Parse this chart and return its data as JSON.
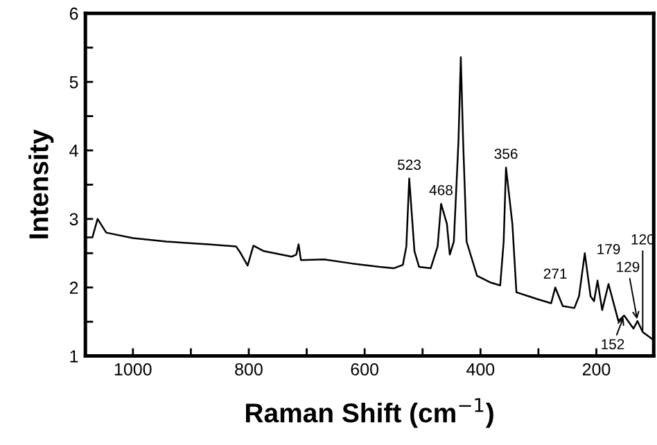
{
  "chart_data": {
    "type": "line",
    "xlabel": "Raman Shift (cm$^{−1}$)",
    "ylabel": "Intensity",
    "x": [
      1082,
      1070,
      1061,
      1046,
      1000,
      942,
      870,
      822,
      814,
      802,
      792,
      774,
      726,
      718,
      714,
      710,
      670,
      622,
      574,
      550,
      534,
      528,
      523,
      514,
      506,
      486,
      474,
      468,
      458,
      453,
      446,
      438,
      434,
      430,
      424,
      406,
      382,
      366,
      360,
      356,
      345,
      338,
      302,
      278,
      271,
      258,
      238,
      230,
      220,
      210,
      204,
      198,
      190,
      179,
      162,
      152,
      136,
      129,
      120,
      101
    ],
    "series": [
      {
        "color": "#000000",
        "values": [
          2.73,
          2.73,
          3.0,
          2.8,
          2.72,
          2.67,
          2.63,
          2.6,
          2.5,
          2.32,
          2.61,
          2.53,
          2.45,
          2.48,
          2.63,
          2.4,
          2.41,
          2.35,
          2.3,
          2.28,
          2.33,
          2.6,
          3.59,
          2.53,
          2.3,
          2.28,
          2.6,
          3.22,
          2.93,
          2.48,
          2.67,
          4.14,
          5.36,
          4.14,
          2.67,
          2.17,
          2.07,
          2.03,
          2.67,
          3.75,
          2.93,
          1.93,
          1.83,
          1.77,
          2.0,
          1.73,
          1.7,
          1.87,
          2.5,
          1.87,
          1.8,
          2.1,
          1.67,
          2.05,
          1.51,
          1.59,
          1.4,
          1.51,
          1.35,
          1.23
        ]
      }
    ],
    "annotations": [
      {
        "text": "523",
        "x": 523,
        "y": 3.59
      },
      {
        "text": "468",
        "x": 468,
        "y": 3.22
      },
      {
        "text": "356",
        "x": 356,
        "y": 3.75
      },
      {
        "text": "271",
        "x": 271,
        "y": 2.0
      },
      {
        "text": "179",
        "x": 179,
        "y": 2.05
      },
      {
        "text": "152",
        "x": 152,
        "y": 1.59
      },
      {
        "text": "129",
        "x": 129,
        "y": 1.51
      },
      {
        "text": "120",
        "x": 120,
        "y": 1.35
      }
    ],
    "xlim": [
      1082,
      101
    ],
    "ylim": [
      1,
      6
    ],
    "xticks": [
      1000,
      {
        "value": 900,
        "label": null
      },
      800,
      {
        "value": 700,
        "label": null
      },
      600,
      {
        "value": 500,
        "label": null
      },
      400,
      {
        "value": 300,
        "label": null
      },
      200
    ],
    "yticks": [
      1,
      {
        "value": 1.5,
        "label": null
      },
      2,
      {
        "value": 2.5,
        "label": null
      },
      3,
      {
        "value": 3.5,
        "label": null
      },
      4,
      {
        "value": 4.5,
        "label": null
      },
      5,
      {
        "value": 5.5,
        "label": null
      },
      6
    ],
    "grid": false,
    "legend": false,
    "marker": "none",
    "line_style": "solid"
  }
}
